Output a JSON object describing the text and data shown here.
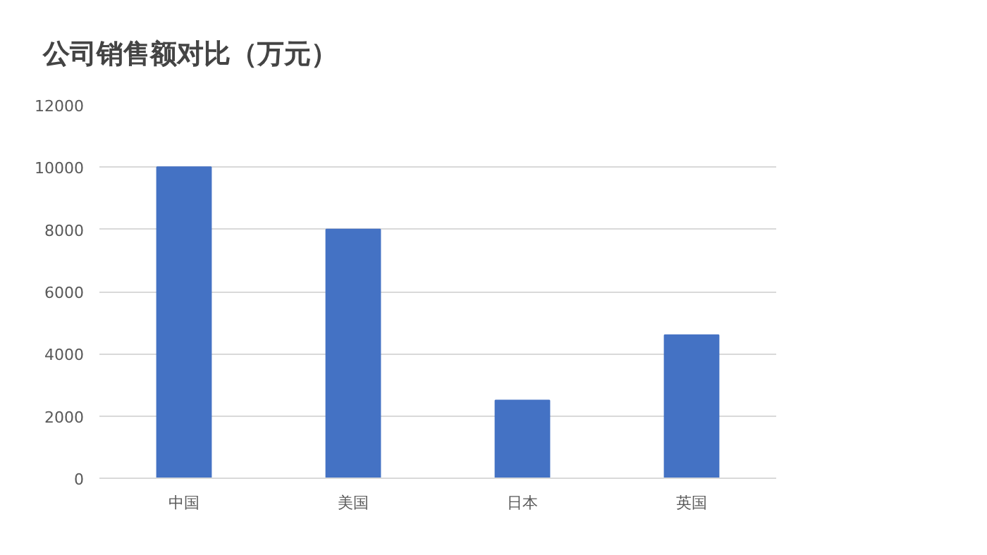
{
  "chart_data": {
    "type": "bar",
    "title": "公司销售额对比（万元）",
    "categories": [
      "中国",
      "美国",
      "日本",
      "英国"
    ],
    "values": [
      10000,
      8000,
      2500,
      4600
    ],
    "color": "#4472c4",
    "ylim": [
      0,
      12000
    ],
    "yticks": [
      0,
      2000,
      4000,
      6000,
      8000,
      10000,
      12000
    ],
    "grid": "y"
  }
}
